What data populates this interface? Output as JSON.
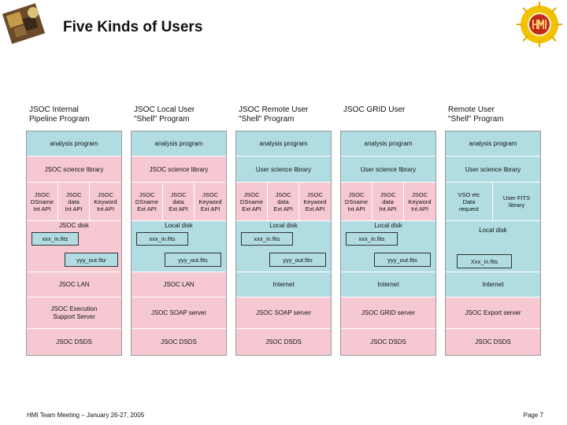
{
  "title": "Five Kinds of Users",
  "footer": {
    "left": "HMI Team Meeting – January 26-27, 2005",
    "right": "Page 7"
  },
  "columns": [
    {
      "header": "JSOC Internal\nPipeline Program",
      "analysis": "analysis program",
      "library": "JSOC science library",
      "apis": [
        "JSOC\nDSname\nInt API",
        "JSOC\ndata\nInt API",
        "JSOC\nKeyword\nInt API"
      ],
      "disk": "JSOC disk",
      "file_in": "xxx_in.fitz",
      "file_out": "yyy_out.fitz",
      "network": "JSOC LAN",
      "server": "JSOC Execution\nSupport Server",
      "dsds": "JSOC DSDS"
    },
    {
      "header": "JSOC Local User\n\"Shell\" Program",
      "analysis": "analysis program",
      "library": "JSOC science library",
      "apis": [
        "JSOC\nDSname\nExt API",
        "JSOC\ndata\nExt API",
        "JSOC\nKeyword\nExt API"
      ],
      "disk": "Local disk",
      "file_in": "xxx_in.fits",
      "file_out": "yyy_out.fits",
      "network": "JSOC LAN",
      "server": "JSOC SOAP server",
      "dsds": "JSOC DSDS"
    },
    {
      "header": "JSOC Remote User\n\"Shell\" Program",
      "analysis": "analysis program",
      "library": "User science library",
      "apis": [
        "JSOC\nDSname\nExt API",
        "JSOC\ndata\nExt API",
        "JSOC\nKeyword\nExt API"
      ],
      "disk": "Local disk",
      "file_in": "xxx_in.fits",
      "file_out": "yyy_out.fits",
      "network": "Internet",
      "server": "JSOC SOAP server",
      "dsds": "JSOC DSDS"
    },
    {
      "header": "JSOC GRID User",
      "analysis": "analysis program",
      "library": "User science library",
      "apis": [
        "JSOC\nDSname\nInt API",
        "JSOC\ndata\nInt API",
        "JSOC\nKeyword\nInt API"
      ],
      "disk": "Local disk",
      "file_in": "xxx_in.fits",
      "file_out": "yyy_out.fits",
      "network": "Internet",
      "server": "JSOC GRID server",
      "dsds": "JSOC DSDS"
    },
    {
      "header": "Remote User\n\"Shell\" Program",
      "analysis": "analysis program",
      "library": "User science library",
      "apis": [
        "VSO etc\nData\nrequest",
        "User FITS\nlibrary"
      ],
      "disk": "Local disk",
      "file_in": "Xxx_in.fits",
      "network": "Internet",
      "server": "JSOC Export server",
      "dsds": "JSOC DSDS"
    }
  ],
  "colors": {
    "blue": "#b1dde2",
    "pink": "#f6c9d2"
  }
}
